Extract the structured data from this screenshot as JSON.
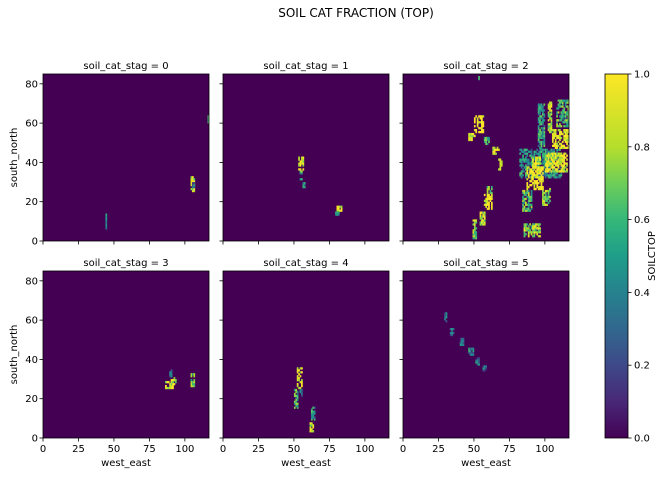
{
  "chart_data": {
    "type": "heatmap",
    "title": "SOIL CAT FRACTION (TOP)",
    "xlabel": "west_east",
    "ylabel": "south_north",
    "colorbar_label": "SOILCTOP",
    "colormap": "viridis",
    "background_color": "#440154",
    "xlim": [
      0,
      117
    ],
    "ylim": [
      0,
      85
    ],
    "clim": [
      0,
      1
    ],
    "xticks": [
      0,
      25,
      50,
      75,
      100
    ],
    "yticks": [
      0,
      20,
      40,
      60,
      80
    ],
    "colorbar_ticks": [
      0.0,
      0.2,
      0.4,
      0.6,
      0.8,
      1.0
    ],
    "colorbar_tick_labels": [
      "0.0",
      "0.2",
      "0.4",
      "0.6",
      "0.8",
      "1.0"
    ],
    "panels": [
      {
        "title": "soil_cat_stag = 0",
        "blobs": [
          {
            "x": 104,
            "y": 25,
            "w": 3,
            "h": 8,
            "value": 0.85
          },
          {
            "x": 105,
            "y": 27,
            "w": 2,
            "h": 3,
            "value": 0.35
          },
          {
            "x": 44,
            "y": 6,
            "w": 1,
            "h": 8,
            "value": 0.45
          },
          {
            "x": 116,
            "y": 60,
            "w": 1,
            "h": 4,
            "value": 0.7
          }
        ]
      },
      {
        "title": "soil_cat_stag = 1",
        "blobs": [
          {
            "x": 53,
            "y": 36,
            "w": 4,
            "h": 7,
            "value": 0.95
          },
          {
            "x": 54,
            "y": 31,
            "w": 2,
            "h": 5,
            "value": 0.6
          },
          {
            "x": 56,
            "y": 26,
            "w": 2,
            "h": 4,
            "value": 0.4
          },
          {
            "x": 80,
            "y": 15,
            "w": 4,
            "h": 3,
            "value": 0.9
          },
          {
            "x": 79,
            "y": 13,
            "w": 3,
            "h": 2,
            "value": 0.55
          }
        ]
      },
      {
        "title": "soil_cat_stag = 2",
        "blobs": [
          {
            "x": 50,
            "y": 55,
            "w": 7,
            "h": 9,
            "value": 1.0
          },
          {
            "x": 46,
            "y": 51,
            "w": 5,
            "h": 4,
            "value": 0.9
          },
          {
            "x": 57,
            "y": 49,
            "w": 4,
            "h": 4,
            "value": 0.65
          },
          {
            "x": 63,
            "y": 44,
            "w": 5,
            "h": 4,
            "value": 0.9
          },
          {
            "x": 67,
            "y": 36,
            "w": 3,
            "h": 6,
            "value": 0.8
          },
          {
            "x": 57,
            "y": 16,
            "w": 6,
            "h": 8,
            "value": 0.95
          },
          {
            "x": 59,
            "y": 24,
            "w": 4,
            "h": 4,
            "value": 0.75
          },
          {
            "x": 54,
            "y": 8,
            "w": 4,
            "h": 7,
            "value": 0.85
          },
          {
            "x": 49,
            "y": 1,
            "w": 3,
            "h": 10,
            "value": 0.75
          },
          {
            "x": 82,
            "y": 32,
            "w": 30,
            "h": 15,
            "value": 0.45
          },
          {
            "x": 87,
            "y": 26,
            "w": 12,
            "h": 12,
            "value": 1.0
          },
          {
            "x": 100,
            "y": 35,
            "w": 16,
            "h": 10,
            "value": 0.9
          },
          {
            "x": 105,
            "y": 47,
            "w": 12,
            "h": 10,
            "value": 0.95
          },
          {
            "x": 108,
            "y": 58,
            "w": 9,
            "h": 14,
            "value": 0.6
          },
          {
            "x": 95,
            "y": 47,
            "w": 5,
            "h": 23,
            "value": 0.5
          },
          {
            "x": 102,
            "y": 55,
            "w": 3,
            "h": 16,
            "value": 0.85
          },
          {
            "x": 84,
            "y": 15,
            "w": 7,
            "h": 11,
            "value": 0.65
          },
          {
            "x": 98,
            "y": 18,
            "w": 6,
            "h": 9,
            "value": 0.75
          },
          {
            "x": 91,
            "y": 37,
            "w": 6,
            "h": 6,
            "value": 0.95
          },
          {
            "x": 85,
            "y": 2,
            "w": 12,
            "h": 7,
            "value": 0.75
          },
          {
            "x": 91,
            "y": 6,
            "w": 5,
            "h": 2,
            "value": 0.95
          },
          {
            "x": 52,
            "y": 82,
            "w": 3,
            "h": 2,
            "value": 0.85
          },
          {
            "x": 67,
            "y": 85,
            "w": 2,
            "h": 2,
            "value": 0.35
          }
        ]
      },
      {
        "title": "soil_cat_stag = 3",
        "blobs": [
          {
            "x": 86,
            "y": 25,
            "w": 6,
            "h": 4,
            "value": 0.9
          },
          {
            "x": 90,
            "y": 27,
            "w": 4,
            "h": 4,
            "value": 0.85
          },
          {
            "x": 89,
            "y": 31,
            "w": 2,
            "h": 4,
            "value": 0.45
          },
          {
            "x": 104,
            "y": 26,
            "w": 3,
            "h": 7,
            "value": 0.7
          }
        ]
      },
      {
        "title": "soil_cat_stag = 4",
        "blobs": [
          {
            "x": 52,
            "y": 25,
            "w": 4,
            "h": 11,
            "value": 0.95
          },
          {
            "x": 50,
            "y": 15,
            "w": 3,
            "h": 10,
            "value": 0.55
          },
          {
            "x": 54,
            "y": 21,
            "w": 2,
            "h": 4,
            "value": 0.4
          },
          {
            "x": 62,
            "y": 9,
            "w": 3,
            "h": 7,
            "value": 0.5
          },
          {
            "x": 61,
            "y": 3,
            "w": 3,
            "h": 5,
            "value": 0.85
          }
        ]
      },
      {
        "title": "soil_cat_stag = 5",
        "blobs": [
          {
            "x": 29,
            "y": 58,
            "w": 2,
            "h": 6,
            "value": 0.3
          },
          {
            "x": 33,
            "y": 52,
            "w": 3,
            "h": 4,
            "value": 0.35
          },
          {
            "x": 40,
            "y": 47,
            "w": 3,
            "h": 4,
            "value": 0.35
          },
          {
            "x": 46,
            "y": 42,
            "w": 4,
            "h": 4,
            "value": 0.4
          },
          {
            "x": 51,
            "y": 37,
            "w": 3,
            "h": 4,
            "value": 0.35
          },
          {
            "x": 56,
            "y": 34,
            "w": 3,
            "h": 3,
            "value": 0.3
          }
        ]
      }
    ]
  }
}
